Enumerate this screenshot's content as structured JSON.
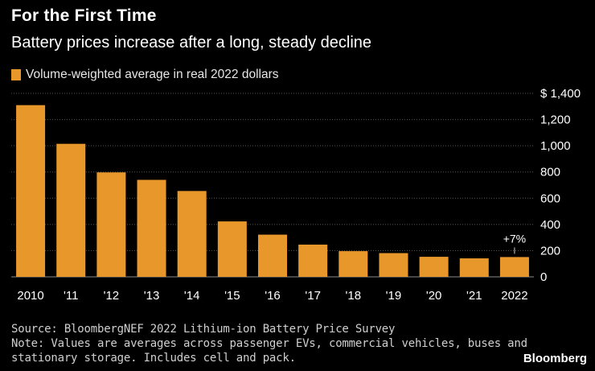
{
  "colors": {
    "bar": "#e8972a",
    "background": "#000000",
    "gridline": "#555555",
    "text": "#ffffff"
  },
  "chart_data": {
    "type": "bar",
    "title": "For the First Time",
    "subtitle": "Battery prices increase after a long, steady decline",
    "legend": "Volume-weighted average in real 2022 dollars",
    "categories": [
      "2010",
      "'11",
      "'12",
      "'13",
      "'14",
      "'15",
      "'16",
      "'17",
      "'18",
      "'19",
      "'20",
      "'21",
      "2022"
    ],
    "values": [
      1310,
      1015,
      797,
      740,
      655,
      423,
      322,
      246,
      196,
      181,
      153,
      141,
      151
    ],
    "ylim": [
      0,
      1400
    ],
    "yticks": [
      0,
      200,
      400,
      600,
      800,
      1000,
      1200,
      1400
    ],
    "ytick_labels": [
      "0",
      "200",
      "400",
      "600",
      "800",
      "1,000",
      "1,200",
      "$ 1,400"
    ],
    "annotation": {
      "category": "2022",
      "text": "+7%"
    },
    "xlabel": "",
    "ylabel": ""
  },
  "footer": {
    "source": "Source: BloombergNEF 2022 Lithium-ion Battery Price Survey",
    "note_line1": "Note: Values are averages across passenger EVs, commercial vehicles, buses and",
    "note_line2": "stationary storage. Includes cell and pack.",
    "brand": "Bloomberg"
  }
}
